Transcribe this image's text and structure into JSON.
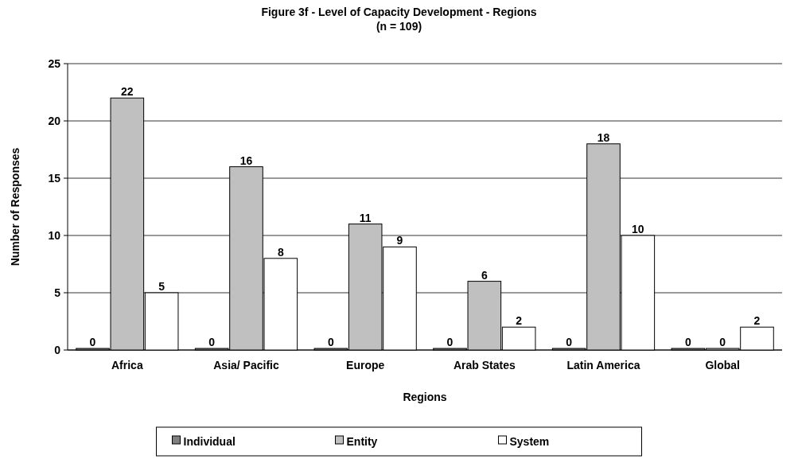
{
  "chart_data": {
    "type": "bar",
    "title": "Figure 3f - Level of Capacity Development - Regions",
    "subtitle": "(n = 109)",
    "xlabel": "Regions",
    "ylabel": "Number of Responses",
    "categories": [
      "Africa",
      "Asia/ Pacific",
      "Europe",
      "Arab States",
      "Latin America",
      "Global"
    ],
    "series": [
      {
        "name": "Individual",
        "color": "#808080",
        "values": [
          0,
          0,
          0,
          0,
          0,
          0
        ]
      },
      {
        "name": "Entity",
        "color": "#c0c0c0",
        "values": [
          22,
          16,
          11,
          6,
          18,
          0
        ]
      },
      {
        "name": "System",
        "color": "#ffffff",
        "values": [
          5,
          8,
          9,
          2,
          10,
          2
        ]
      }
    ],
    "ylim": [
      0,
      25
    ],
    "yticks": [
      0,
      5,
      10,
      15,
      20,
      25
    ],
    "grid": "y",
    "legend": "bottom",
    "data_labels": true
  }
}
